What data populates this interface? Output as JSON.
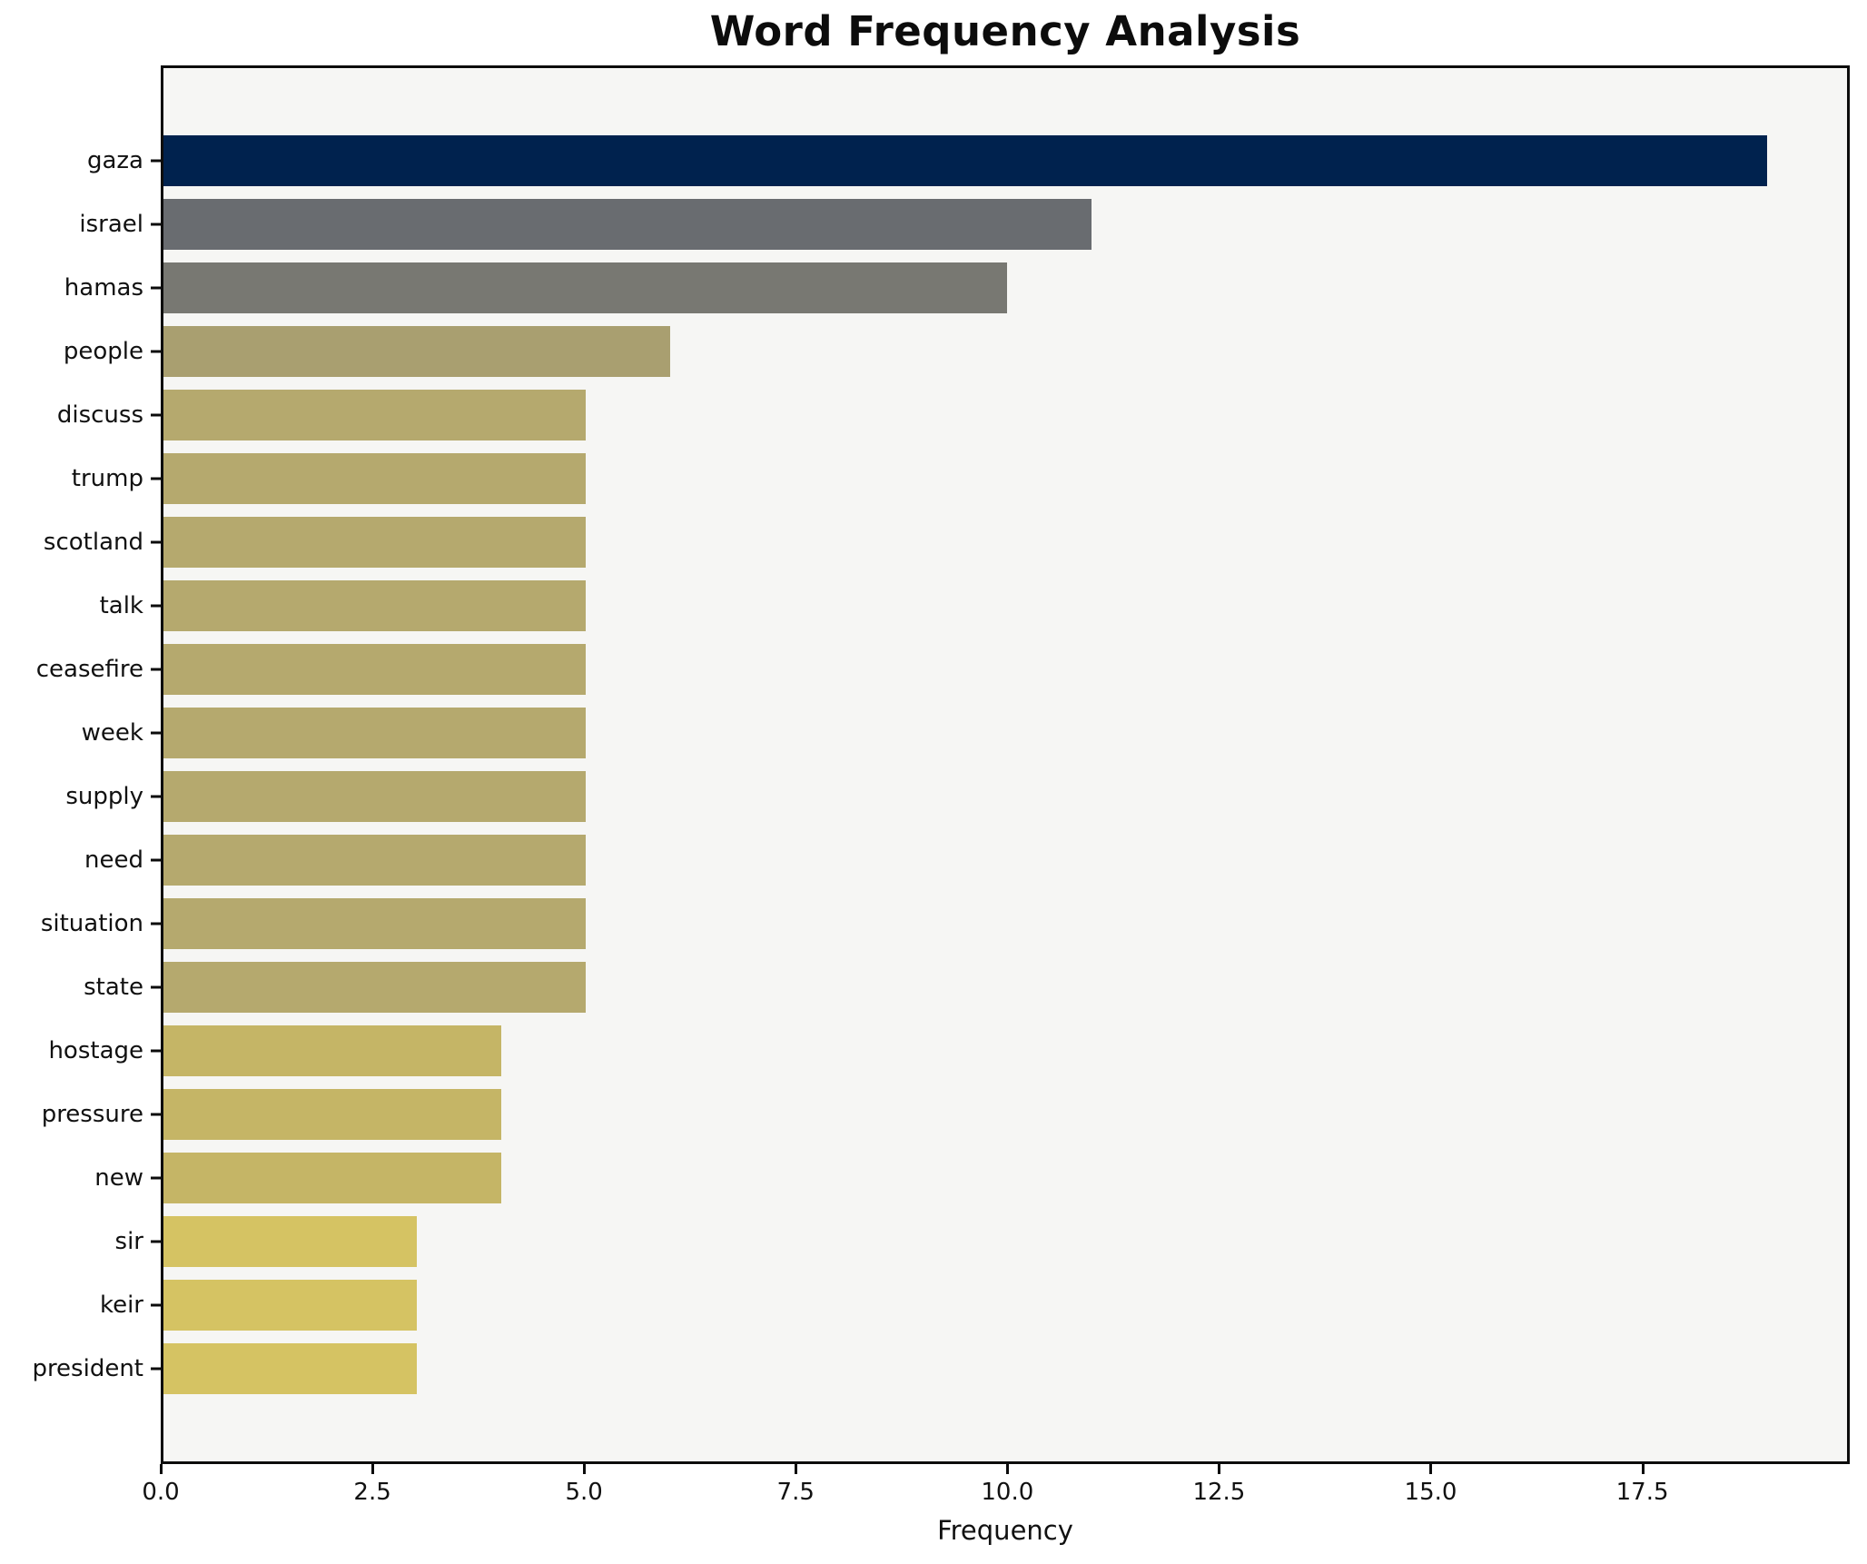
{
  "title": "Word Frequency Analysis",
  "chart_data": {
    "type": "bar",
    "orientation": "horizontal",
    "title": "Word Frequency Analysis",
    "xlabel": "Frequency",
    "ylabel": "",
    "categories": [
      "gaza",
      "israel",
      "hamas",
      "people",
      "discuss",
      "trump",
      "scotland",
      "talk",
      "ceasefire",
      "week",
      "supply",
      "need",
      "situation",
      "state",
      "hostage",
      "pressure",
      "new",
      "sir",
      "keir",
      "president"
    ],
    "values": [
      19,
      11,
      10,
      6,
      5,
      5,
      5,
      5,
      5,
      5,
      5,
      5,
      5,
      5,
      4,
      4,
      4,
      3,
      3,
      3
    ],
    "bar_colors": [
      "#00224e",
      "#696c70",
      "#787872",
      "#a99f70",
      "#b5a96e",
      "#b5a96e",
      "#b5a96e",
      "#b5a96e",
      "#b5a96e",
      "#b5a96e",
      "#b5a96e",
      "#b5a96e",
      "#b5a96e",
      "#b5a96e",
      "#c5b566",
      "#c5b566",
      "#c5b566",
      "#d5c363",
      "#d5c363",
      "#d5c363"
    ],
    "xlim": [
      0,
      19.95
    ],
    "xticks": [
      0,
      2.5,
      5,
      7.5,
      10,
      12.5,
      15,
      17.5
    ],
    "xtick_labels": [
      "0.0",
      "2.5",
      "5.0",
      "7.5",
      "10.0",
      "12.5",
      "15.0",
      "17.5"
    ],
    "grid": false,
    "legend": null,
    "plot_background": "#f6f6f4",
    "figure_background": "#ffffff",
    "spine_color": "#0c0c0c",
    "colormap": "cividis"
  }
}
